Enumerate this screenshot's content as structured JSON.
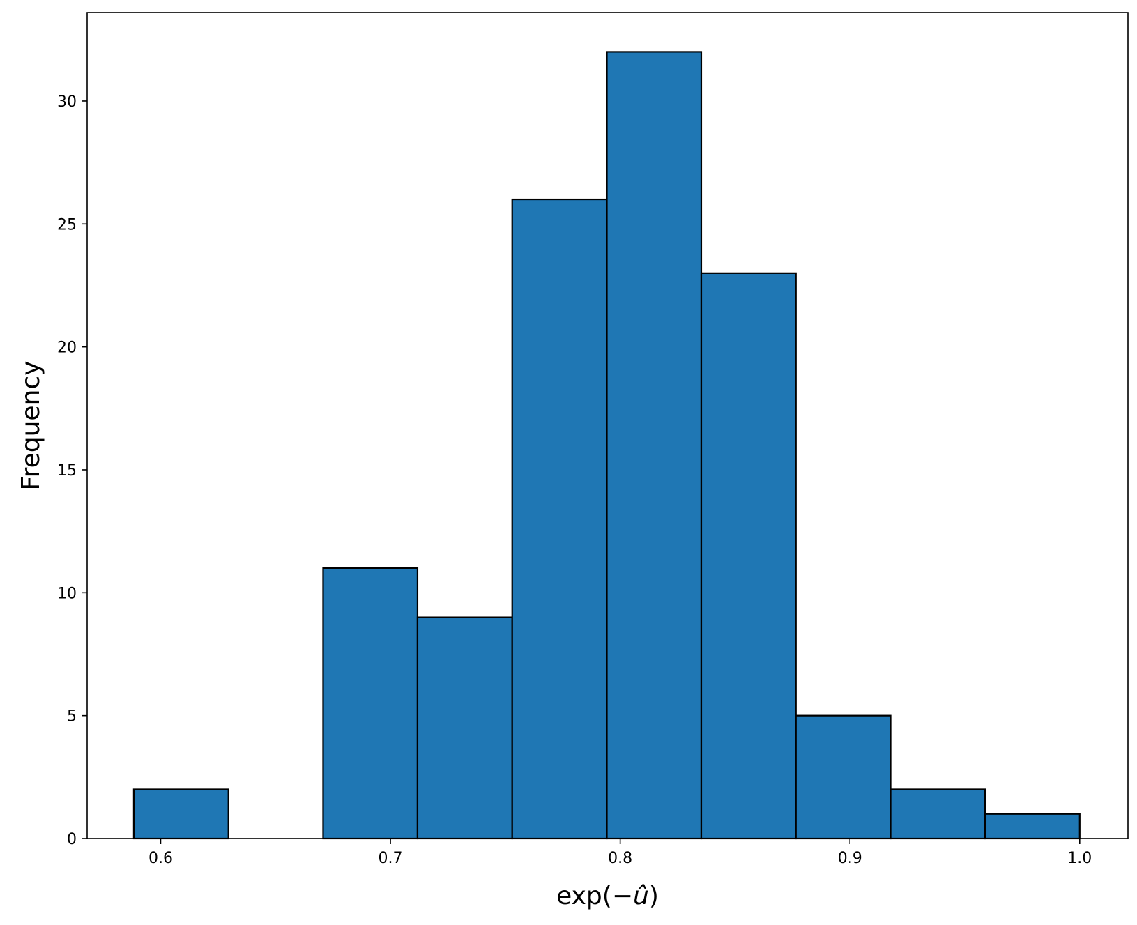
{
  "chart_data": {
    "type": "bar",
    "title": "",
    "xlabel_parts": {
      "prefix": "exp(−",
      "var": "û",
      "suffix": ")"
    },
    "ylabel": "Frequency",
    "bins": [
      {
        "start": 0.5883,
        "end": 0.6295,
        "count": 2
      },
      {
        "start": 0.6295,
        "end": 0.6707,
        "count": 0
      },
      {
        "start": 0.6707,
        "end": 0.7118,
        "count": 11
      },
      {
        "start": 0.7118,
        "end": 0.753,
        "count": 9
      },
      {
        "start": 0.753,
        "end": 0.7942,
        "count": 26
      },
      {
        "start": 0.7942,
        "end": 0.8353,
        "count": 32
      },
      {
        "start": 0.8353,
        "end": 0.8765,
        "count": 23
      },
      {
        "start": 0.8765,
        "end": 0.9177,
        "count": 5
      },
      {
        "start": 0.9177,
        "end": 0.9588,
        "count": 2
      },
      {
        "start": 0.9588,
        "end": 1.0,
        "count": 1
      }
    ],
    "xlim": [
      0.568,
      1.021
    ],
    "ylim": [
      0,
      33.6
    ],
    "xticks": [
      0.6,
      0.7,
      0.8,
      0.9,
      1.0
    ],
    "xtick_labels": [
      "0.6",
      "0.7",
      "0.8",
      "0.9",
      "1.0"
    ],
    "yticks": [
      0,
      5,
      10,
      15,
      20,
      25,
      30
    ],
    "ytick_labels": [
      "0",
      "5",
      "10",
      "15",
      "20",
      "25",
      "30"
    ],
    "grid": false,
    "legend": "none",
    "colors": {
      "bar_fill": "#1f77b4",
      "bar_edge": "#000000",
      "axis": "#000000"
    }
  }
}
